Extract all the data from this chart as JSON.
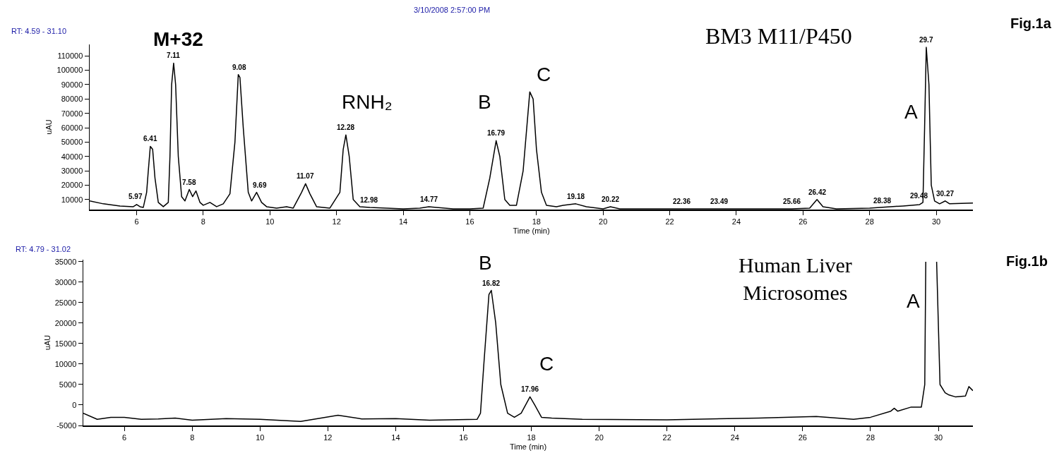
{
  "chart_data": [
    {
      "type": "line",
      "xlabel": "Time (min)",
      "ylabel": "uAU",
      "annotations": [
        "RT: 4.59 - 31.10",
        "3/10/2008 2:57:00 PM",
        "Fig.1a",
        "BM3 M11/P450",
        "M+32",
        "RNH₂",
        "B",
        "C",
        "A",
        {
          "text": "5.97",
          "x": 5.97,
          "y": 7000
        },
        {
          "text": "6.41",
          "x": 6.41,
          "y": 47000
        },
        {
          "text": "7.11",
          "x": 7.11,
          "y": 105000
        },
        {
          "text": "7.58",
          "x": 7.58,
          "y": 17000
        },
        {
          "text": "9.08",
          "x": 9.08,
          "y": 97000
        },
        {
          "text": "9.69",
          "x": 9.69,
          "y": 15000
        },
        {
          "text": "11.07",
          "x": 11.07,
          "y": 21000
        },
        {
          "text": "12.28",
          "x": 12.28,
          "y": 55000
        },
        {
          "text": "12.98",
          "x": 12.98,
          "y": 4500
        },
        {
          "text": "14.77",
          "x": 14.77,
          "y": 5000
        },
        {
          "text": "16.79",
          "x": 16.79,
          "y": 51000
        },
        {
          "text": "19.18",
          "x": 19.18,
          "y": 7000
        },
        {
          "text": "20.22",
          "x": 20.22,
          "y": 5000
        },
        {
          "text": "22.36",
          "x": 22.36,
          "y": 3500
        },
        {
          "text": "23.49",
          "x": 23.49,
          "y": 3500
        },
        {
          "text": "25.66",
          "x": 25.66,
          "y": 3500
        },
        {
          "text": "26.42",
          "x": 26.42,
          "y": 10000
        },
        {
          "text": "28.38",
          "x": 28.38,
          "y": 4000
        },
        {
          "text": "29.48",
          "x": 29.48,
          "y": 7500
        },
        {
          "text": "29.7",
          "x": 29.7,
          "y": 116000
        },
        {
          "text": "30.27",
          "x": 30.27,
          "y": 9000
        }
      ],
      "x": [
        4.59,
        5.0,
        5.5,
        5.9,
        6.0,
        6.1,
        6.2,
        6.3,
        6.35,
        6.41,
        6.48,
        6.55,
        6.65,
        6.8,
        6.95,
        7.0,
        7.05,
        7.11,
        7.17,
        7.25,
        7.35,
        7.45,
        7.58,
        7.68,
        7.78,
        7.9,
        8.0,
        8.2,
        8.4,
        8.6,
        8.8,
        8.95,
        9.05,
        9.1,
        9.2,
        9.35,
        9.45,
        9.6,
        9.75,
        9.9,
        10.2,
        10.5,
        10.7,
        10.95,
        11.07,
        11.2,
        11.4,
        11.8,
        12.1,
        12.2,
        12.28,
        12.38,
        12.5,
        12.7,
        13.0,
        13.5,
        14.0,
        14.5,
        14.77,
        15.0,
        15.5,
        16.0,
        16.4,
        16.6,
        16.79,
        16.9,
        17.05,
        17.2,
        17.4,
        17.6,
        17.8,
        17.9,
        18.0,
        18.15,
        18.3,
        18.6,
        18.8,
        19.18,
        19.5,
        20.0,
        20.22,
        20.5,
        21.0,
        22.36,
        23.49,
        25.66,
        26.2,
        26.42,
        26.6,
        27.0,
        28.0,
        29.0,
        29.5,
        29.6,
        29.65,
        29.7,
        29.78,
        29.85,
        29.95,
        30.1,
        30.27,
        30.4,
        31.1
      ],
      "series": [
        {
          "color": "#000000",
          "values": [
            9000,
            7000,
            5500,
            5000,
            6500,
            5000,
            4500,
            15000,
            30000,
            47000,
            45000,
            25000,
            8000,
            5000,
            8000,
            40000,
            90000,
            105000,
            90000,
            40000,
            12000,
            9000,
            17000,
            12000,
            16000,
            8000,
            6000,
            8000,
            5000,
            7000,
            14000,
            50000,
            97000,
            95000,
            60000,
            15000,
            9000,
            15000,
            8000,
            5000,
            4000,
            5000,
            4000,
            15000,
            21000,
            14000,
            5000,
            4000,
            15000,
            45000,
            55000,
            40000,
            10000,
            5000,
            4500,
            4000,
            3500,
            4000,
            5000,
            4500,
            3500,
            3500,
            4000,
            25000,
            51000,
            40000,
            10000,
            6000,
            6000,
            30000,
            85000,
            80000,
            45000,
            15000,
            6000,
            5000,
            6000,
            7000,
            5000,
            3500,
            5000,
            3500,
            3500,
            3500,
            3500,
            3500,
            4000,
            10000,
            5000,
            3500,
            4000,
            5500,
            6500,
            8000,
            60000,
            116000,
            90000,
            20000,
            9000,
            7000,
            9000,
            7000,
            7500
          ]
        }
      ],
      "xlim": [
        4.59,
        31.1
      ],
      "xticks": [
        6,
        8,
        10,
        12,
        14,
        16,
        18,
        20,
        22,
        24,
        26,
        28,
        30
      ],
      "ylim": [
        3000,
        118000
      ],
      "yticks": [
        10000,
        20000,
        30000,
        40000,
        50000,
        60000,
        70000,
        80000,
        90000,
        100000,
        110000
      ]
    },
    {
      "type": "line",
      "xlabel": "Time (min)",
      "ylabel": "uAU",
      "annotations": [
        "RT: 4.79 - 31.02",
        "Fig.1b",
        "Human Liver\nMicrosomes",
        "B",
        "C",
        "A",
        {
          "text": "16.82",
          "x": 16.82,
          "y": 28000
        },
        {
          "text": "17.96",
          "x": 17.96,
          "y": 2000
        }
      ],
      "x": [
        4.79,
        5.2,
        5.6,
        6.0,
        6.5,
        7.0,
        7.5,
        8.0,
        9.0,
        10.0,
        11.2,
        12.3,
        13.0,
        14.0,
        15.0,
        16.4,
        16.5,
        16.6,
        16.75,
        16.82,
        16.95,
        17.1,
        17.3,
        17.5,
        17.7,
        17.96,
        18.1,
        18.3,
        18.6,
        19.5,
        22.0,
        24.7,
        26.4,
        27.5,
        28.0,
        28.6,
        28.7,
        28.8,
        29.2,
        29.5,
        29.6,
        29.63,
        29.7,
        29.95,
        30.05,
        30.2,
        30.3,
        30.5,
        30.8,
        30.9,
        31.02
      ],
      "series": [
        {
          "color": "#000000",
          "values": [
            -2000,
            -3500,
            -3000,
            -3000,
            -3500,
            -3400,
            -3200,
            -3700,
            -3300,
            -3500,
            -4000,
            -2500,
            -3400,
            -3300,
            -3700,
            -3500,
            -2000,
            10000,
            27000,
            28000,
            20000,
            5000,
            -2000,
            -3000,
            -2000,
            2000,
            0,
            -3000,
            -3200,
            -3500,
            -3600,
            -3200,
            -2800,
            -3500,
            -3000,
            -1500,
            -800,
            -1500,
            -500,
            -500,
            5000,
            35000,
            null,
            35000,
            5000,
            3000,
            2500,
            2000,
            2200,
            4500,
            3500
          ]
        }
      ],
      "xlim": [
        4.79,
        31.02
      ],
      "xticks": [
        6,
        8,
        10,
        12,
        14,
        16,
        18,
        20,
        22,
        24,
        26,
        28,
        30
      ],
      "ylim": [
        -5000,
        35500
      ],
      "yticks": [
        -5000,
        0,
        5000,
        10000,
        15000,
        20000,
        25000,
        30000,
        35000
      ]
    }
  ]
}
